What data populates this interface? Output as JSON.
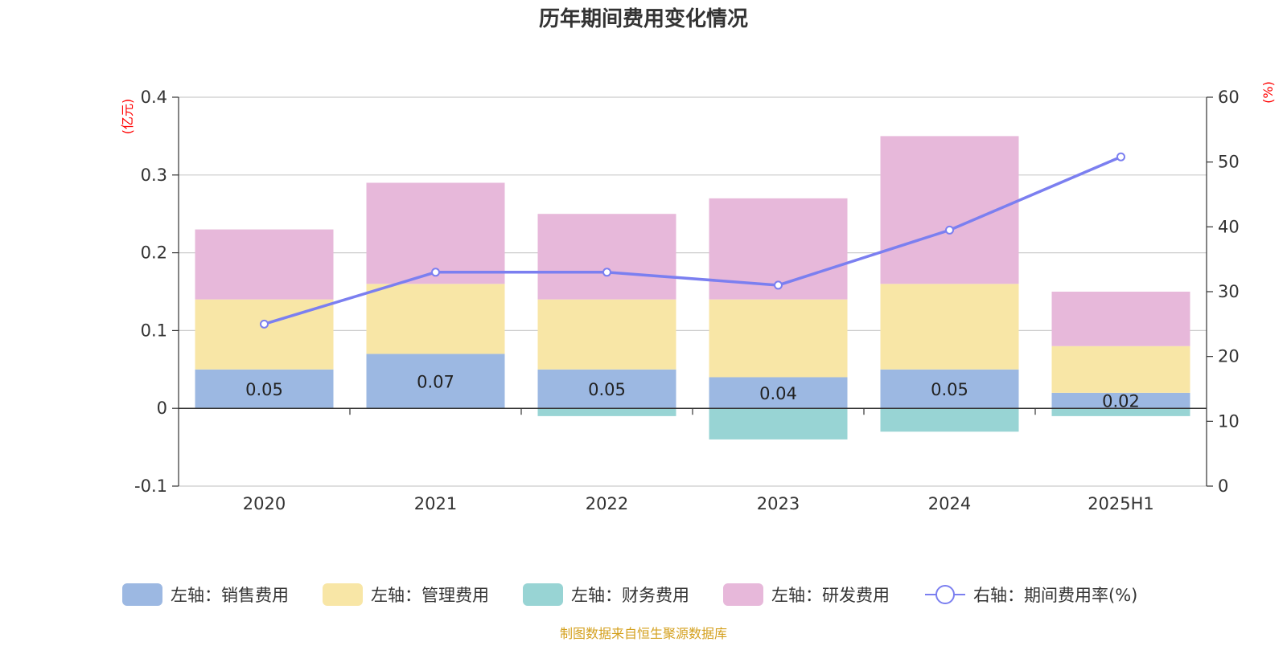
{
  "chart_data": {
    "type": "bar",
    "title": "历年期间费用变化情况",
    "categories": [
      "2020",
      "2021",
      "2022",
      "2023",
      "2024",
      "2025H1"
    ],
    "series": [
      {
        "name": "左轴：销售费用",
        "axis": "left",
        "color": "#9cb8e2",
        "values": [
          0.05,
          0.07,
          0.05,
          0.04,
          0.05,
          0.02
        ],
        "labels": [
          "0.05",
          "0.07",
          "0.05",
          "0.04",
          "0.05",
          "0.02"
        ]
      },
      {
        "name": "左轴：管理费用",
        "axis": "left",
        "color": "#f8e6a6",
        "values": [
          0.09,
          0.09,
          0.09,
          0.1,
          0.11,
          0.06
        ]
      },
      {
        "name": "左轴：财务费用",
        "axis": "left",
        "color": "#98d4d4",
        "values": [
          0.0,
          0.0,
          -0.01,
          -0.04,
          -0.03,
          -0.01
        ]
      },
      {
        "name": "左轴：研发费用",
        "axis": "left",
        "color": "#e7b8da",
        "values": [
          0.09,
          0.13,
          0.11,
          0.13,
          0.19,
          0.07
        ]
      }
    ],
    "line_series": {
      "name": "右轴：期间费用率(%)",
      "axis": "right",
      "color": "#7b7ff0",
      "values": [
        25.0,
        33.0,
        33.0,
        31.0,
        39.5,
        50.8
      ]
    },
    "left_axis": {
      "unit": "(亿元)",
      "ylim": [
        -0.1,
        0.4
      ],
      "ticks": [
        "-0.1",
        "0",
        "0.1",
        "0.2",
        "0.3",
        "0.4"
      ]
    },
    "right_axis": {
      "unit": "(%)",
      "ylim": [
        0,
        60
      ],
      "ticks": [
        "0",
        "10",
        "20",
        "30",
        "40",
        "50",
        "60"
      ]
    },
    "grid": true,
    "legend_position": "bottom",
    "source": "制图数据来自恒生聚源数据库"
  }
}
